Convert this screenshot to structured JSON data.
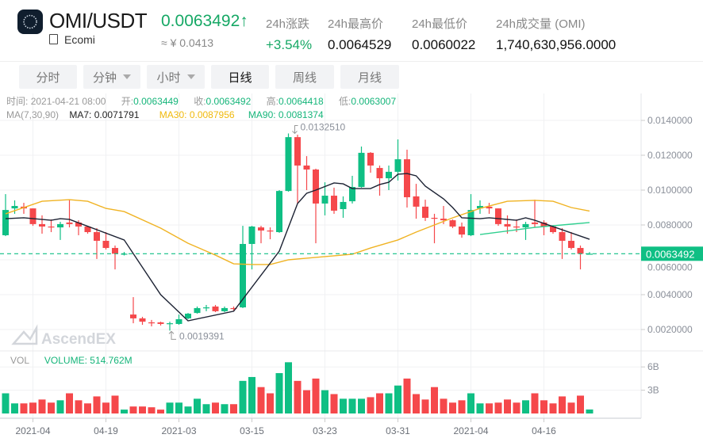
{
  "header": {
    "pair": "OMI/USDT",
    "coin_name": "Ecomi",
    "last_price": "0.0063492",
    "price_arrow": "↑",
    "cny_price": "≈ ¥ 0.0413",
    "stats": [
      {
        "label": "24h涨跌",
        "value": "+3.54%",
        "color": "#16a865"
      },
      {
        "label": "24h最高价",
        "value": "0.0064529"
      },
      {
        "label": "24h最低价",
        "value": "0.0060022"
      },
      {
        "label": "24h成交量 (OMI)",
        "value": "1,740,630,956.0000"
      }
    ]
  },
  "tabs": [
    {
      "label": "分时",
      "dropdown": false,
      "active": false
    },
    {
      "label": "分钟",
      "dropdown": true,
      "active": false
    },
    {
      "label": "小时",
      "dropdown": true,
      "active": false
    },
    {
      "label": "日线",
      "dropdown": false,
      "active": true
    },
    {
      "label": "周线",
      "dropdown": false,
      "active": false
    },
    {
      "label": "月线",
      "dropdown": false,
      "active": false
    }
  ],
  "info": {
    "time_label": "时间:",
    "time": "2021-04-21 08:00",
    "open_label": "开:",
    "open": "0.0063449",
    "close_label": "收:",
    "close": "0.0063492",
    "high_label": "高:",
    "high": "0.0064418",
    "low_label": "低:",
    "low": "0.0063007",
    "ma_label": "MA(7,30,90)",
    "ma7": "MA7: 0.0071791",
    "ma30": "MA30: 0.0087956",
    "ma90": "MA90: 0.0081374",
    "vol_label": "VOL",
    "volume": "VOLUME: 514.762M"
  },
  "watermark": "AscendEX",
  "colors": {
    "up": "#0fbf84",
    "down": "#f5484b",
    "ma7": "#1c2233",
    "ma30": "#f0b323",
    "ma90": "#2fcf8f",
    "accent": "#16a865"
  },
  "chart_data": {
    "type": "candlestick",
    "x_tick_labels": [
      {
        "candle": 4,
        "label": "2021-04"
      },
      {
        "candle": 12,
        "label": "04-19"
      },
      {
        "candle": 20,
        "label": "2021-03"
      },
      {
        "candle": 28,
        "label": "03-15"
      },
      {
        "candle": 36,
        "label": "03-23"
      },
      {
        "candle": 44,
        "label": "03-31"
      },
      {
        "candle": 52,
        "label": "2021-04"
      },
      {
        "candle": 60,
        "label": "04-16"
      }
    ],
    "price_axis": {
      "ylim": [
        0.0016,
        0.0148
      ],
      "ticks": [
        "0.0020000",
        "0.0040000",
        "0.0060000",
        "0.0080000",
        "0.0100000",
        "0.0120000",
        "0.0140000"
      ],
      "tick_values": [
        0.002,
        0.004,
        0.006,
        0.008,
        0.01,
        0.012,
        0.014
      ]
    },
    "last_price_tag": {
      "value": 0.0063492,
      "label": "0.0063492"
    },
    "max_annotation": {
      "candle": 32,
      "value": 0.013251,
      "label": "0.0132510"
    },
    "min_annotation": {
      "candle": 19,
      "value": 0.0019391,
      "label": "0.0019391"
    },
    "candles_ohlc": [
      [
        0.00741,
        0.00977,
        0.00736,
        0.00886
      ],
      [
        0.00895,
        0.00941,
        0.00864,
        0.00909
      ],
      [
        0.00905,
        0.00927,
        0.00864,
        0.00895
      ],
      [
        0.00895,
        0.00895,
        0.00795,
        0.00805
      ],
      [
        0.00805,
        0.00855,
        0.0075,
        0.00791
      ],
      [
        0.00791,
        0.00832,
        0.00759,
        0.00786
      ],
      [
        0.00786,
        0.00818,
        0.00714,
        0.00805
      ],
      [
        0.00814,
        0.00945,
        0.00786,
        0.00805
      ],
      [
        0.00814,
        0.00827,
        0.00741,
        0.00791
      ],
      [
        0.00791,
        0.00795,
        0.0075,
        0.00759
      ],
      [
        0.00759,
        0.00782,
        0.00605,
        0.00709
      ],
      [
        0.00709,
        0.00759,
        0.00659,
        0.00668
      ],
      [
        0.00668,
        0.00682,
        0.00545,
        0.00635
      ],
      [
        0.00633,
        0.00645,
        0.00625,
        0.00635
      ],
      [
        0.00286,
        0.00386,
        0.00236,
        0.00264
      ],
      [
        0.00264,
        0.00273,
        0.00227,
        0.00245
      ],
      [
        0.00241,
        0.00255,
        0.00218,
        0.00236
      ],
      [
        0.00241,
        0.00245,
        0.00223,
        0.00232
      ],
      [
        0.00234,
        0.00245,
        0.0019391,
        0.00236
      ],
      [
        0.00232,
        0.00286,
        0.00227,
        0.00259
      ],
      [
        0.00264,
        0.00295,
        0.00259,
        0.00291
      ],
      [
        0.00295,
        0.00332,
        0.00291,
        0.00323
      ],
      [
        0.00323,
        0.00341,
        0.00305,
        0.00327
      ],
      [
        0.00332,
        0.00341,
        0.003,
        0.00305
      ],
      [
        0.00305,
        0.00332,
        0.003,
        0.00323
      ],
      [
        0.00323,
        0.00332,
        0.00309,
        0.00318
      ],
      [
        0.00327,
        0.00795,
        0.00323,
        0.00691
      ],
      [
        0.00691,
        0.00795,
        0.00545,
        0.00791
      ],
      [
        0.00786,
        0.00795,
        0.00695,
        0.00768
      ],
      [
        0.00768,
        0.00786,
        0.00718,
        0.00764
      ],
      [
        0.00759,
        0.01,
        0.00755,
        0.00995
      ],
      [
        0.00995,
        0.013251,
        0.00991,
        0.01304
      ],
      [
        0.01304,
        0.01318,
        0.00923,
        0.01141
      ],
      [
        0.01141,
        0.01195,
        0.01,
        0.01118
      ],
      [
        0.01118,
        0.01123,
        0.00695,
        0.00923
      ],
      [
        0.00923,
        0.01045,
        0.00855,
        0.00968
      ],
      [
        0.00968,
        0.01014,
        0.00864,
        0.00882
      ],
      [
        0.00891,
        0.00964,
        0.00841,
        0.00932
      ],
      [
        0.00936,
        0.01082,
        0.00923,
        0.01018
      ],
      [
        0.01018,
        0.0125,
        0.01014,
        0.01214
      ],
      [
        0.01214,
        0.01218,
        0.011,
        0.01141
      ],
      [
        0.01127,
        0.01141,
        0.00968,
        0.01068
      ],
      [
        0.01068,
        0.01141,
        0.01,
        0.01105
      ],
      [
        0.01105,
        0.01291,
        0.01055,
        0.01177
      ],
      [
        0.01177,
        0.01232,
        0.009,
        0.00959
      ],
      [
        0.00964,
        0.01036,
        0.00836,
        0.00905
      ],
      [
        0.00905,
        0.00945,
        0.00823,
        0.00841
      ],
      [
        0.00841,
        0.00864,
        0.00695,
        0.00836
      ],
      [
        0.00836,
        0.00909,
        0.00805,
        0.00827
      ],
      [
        0.00827,
        0.00832,
        0.00782,
        0.00791
      ],
      [
        0.00791,
        0.00814,
        0.00727,
        0.00745
      ],
      [
        0.00741,
        0.00977,
        0.00736,
        0.00886
      ],
      [
        0.00895,
        0.00941,
        0.00864,
        0.00909
      ],
      [
        0.00905,
        0.00927,
        0.00864,
        0.00895
      ],
      [
        0.00895,
        0.00895,
        0.00795,
        0.00805
      ],
      [
        0.00805,
        0.00855,
        0.0075,
        0.00791
      ],
      [
        0.00791,
        0.00832,
        0.00759,
        0.00786
      ],
      [
        0.00786,
        0.00818,
        0.00714,
        0.00805
      ],
      [
        0.00814,
        0.00945,
        0.00786,
        0.00805
      ],
      [
        0.00814,
        0.00827,
        0.00741,
        0.00791
      ],
      [
        0.00791,
        0.00795,
        0.0075,
        0.00759
      ],
      [
        0.00759,
        0.00782,
        0.00605,
        0.00709
      ],
      [
        0.00709,
        0.00759,
        0.00659,
        0.00668
      ],
      [
        0.00668,
        0.00682,
        0.00545,
        0.00635
      ],
      [
        0.0063449,
        0.0064418,
        0.0063007,
        0.0063492
      ]
    ],
    "ma7": [
      [
        1,
        0.00836
      ],
      [
        3,
        0.00841
      ],
      [
        6,
        0.00827
      ],
      [
        7,
        0.00836
      ],
      [
        8,
        0.00832
      ],
      [
        14,
        0.00714
      ],
      [
        18,
        0.004
      ],
      [
        21,
        0.0025
      ],
      [
        26,
        0.00305
      ],
      [
        31,
        0.0065
      ],
      [
        33,
        0.00923
      ],
      [
        34,
        0.00982
      ],
      [
        35,
        0.01
      ],
      [
        37,
        0.01041
      ],
      [
        38,
        0.01036
      ],
      [
        39,
        0.01009
      ],
      [
        41,
        0.01009
      ],
      [
        42,
        0.01032
      ],
      [
        43,
        0.01045
      ],
      [
        44,
        0.01091
      ],
      [
        45,
        0.01095
      ],
      [
        46,
        0.01082
      ],
      [
        47,
        0.01023
      ],
      [
        49,
        0.0095
      ],
      [
        50,
        0.009
      ],
      [
        51,
        0.00841
      ],
      [
        53,
        0.00836
      ],
      [
        54,
        0.00841
      ],
      [
        57,
        0.00827
      ],
      [
        58,
        0.00841
      ],
      [
        59,
        0.00827
      ],
      [
        65,
        0.0071791
      ]
    ],
    "ma30": [
      [
        1,
        0.00864
      ],
      [
        5,
        0.00936
      ],
      [
        8,
        0.00945
      ],
      [
        10,
        0.00936
      ],
      [
        12,
        0.00895
      ],
      [
        14,
        0.00877
      ],
      [
        18,
        0.00782
      ],
      [
        21,
        0.00695
      ],
      [
        24,
        0.00627
      ],
      [
        26,
        0.00577
      ],
      [
        28,
        0.00573
      ],
      [
        30,
        0.00573
      ],
      [
        32,
        0.006
      ],
      [
        35,
        0.00614
      ],
      [
        39,
        0.00632
      ],
      [
        41,
        0.00668
      ],
      [
        44,
        0.00714
      ],
      [
        46,
        0.00759
      ],
      [
        48,
        0.008
      ],
      [
        50,
        0.00841
      ],
      [
        53,
        0.00895
      ],
      [
        56,
        0.00936
      ],
      [
        59,
        0.00941
      ],
      [
        61,
        0.00936
      ],
      [
        63,
        0.009
      ],
      [
        65,
        0.0087956
      ]
    ],
    "ma90": [
      [
        53,
        0.00745
      ],
      [
        59,
        0.00786
      ],
      [
        62,
        0.008
      ],
      [
        65,
        0.0081374
      ]
    ],
    "volume_axis": {
      "ticks": [
        "3B",
        "6B"
      ],
      "tick_values": [
        3,
        6
      ],
      "unit": "B"
    },
    "volume_billions": [
      2.6,
      1.3,
      1.3,
      1.4,
      1.8,
      1.4,
      1.7,
      2.6,
      1.7,
      1.3,
      2.2,
      1.4,
      2.3,
      0.5,
      0.9,
      0.9,
      0.8,
      0.5,
      1.4,
      1.4,
      0.9,
      1.9,
      1.2,
      1.4,
      1.2,
      1.2,
      4.2,
      4.7,
      3.4,
      2.6,
      5.2,
      6.6,
      4.2,
      3.0,
      4.5,
      3.0,
      2.5,
      1.9,
      1.9,
      1.9,
      2.1,
      2.6,
      2.6,
      3.6,
      4.5,
      2.5,
      1.8,
      3.4,
      1.9,
      1.4,
      1.7,
      2.6,
      1.3,
      1.3,
      1.4,
      1.8,
      1.4,
      1.7,
      2.6,
      1.7,
      1.3,
      2.2,
      1.4,
      2.3,
      0.514762
    ]
  }
}
